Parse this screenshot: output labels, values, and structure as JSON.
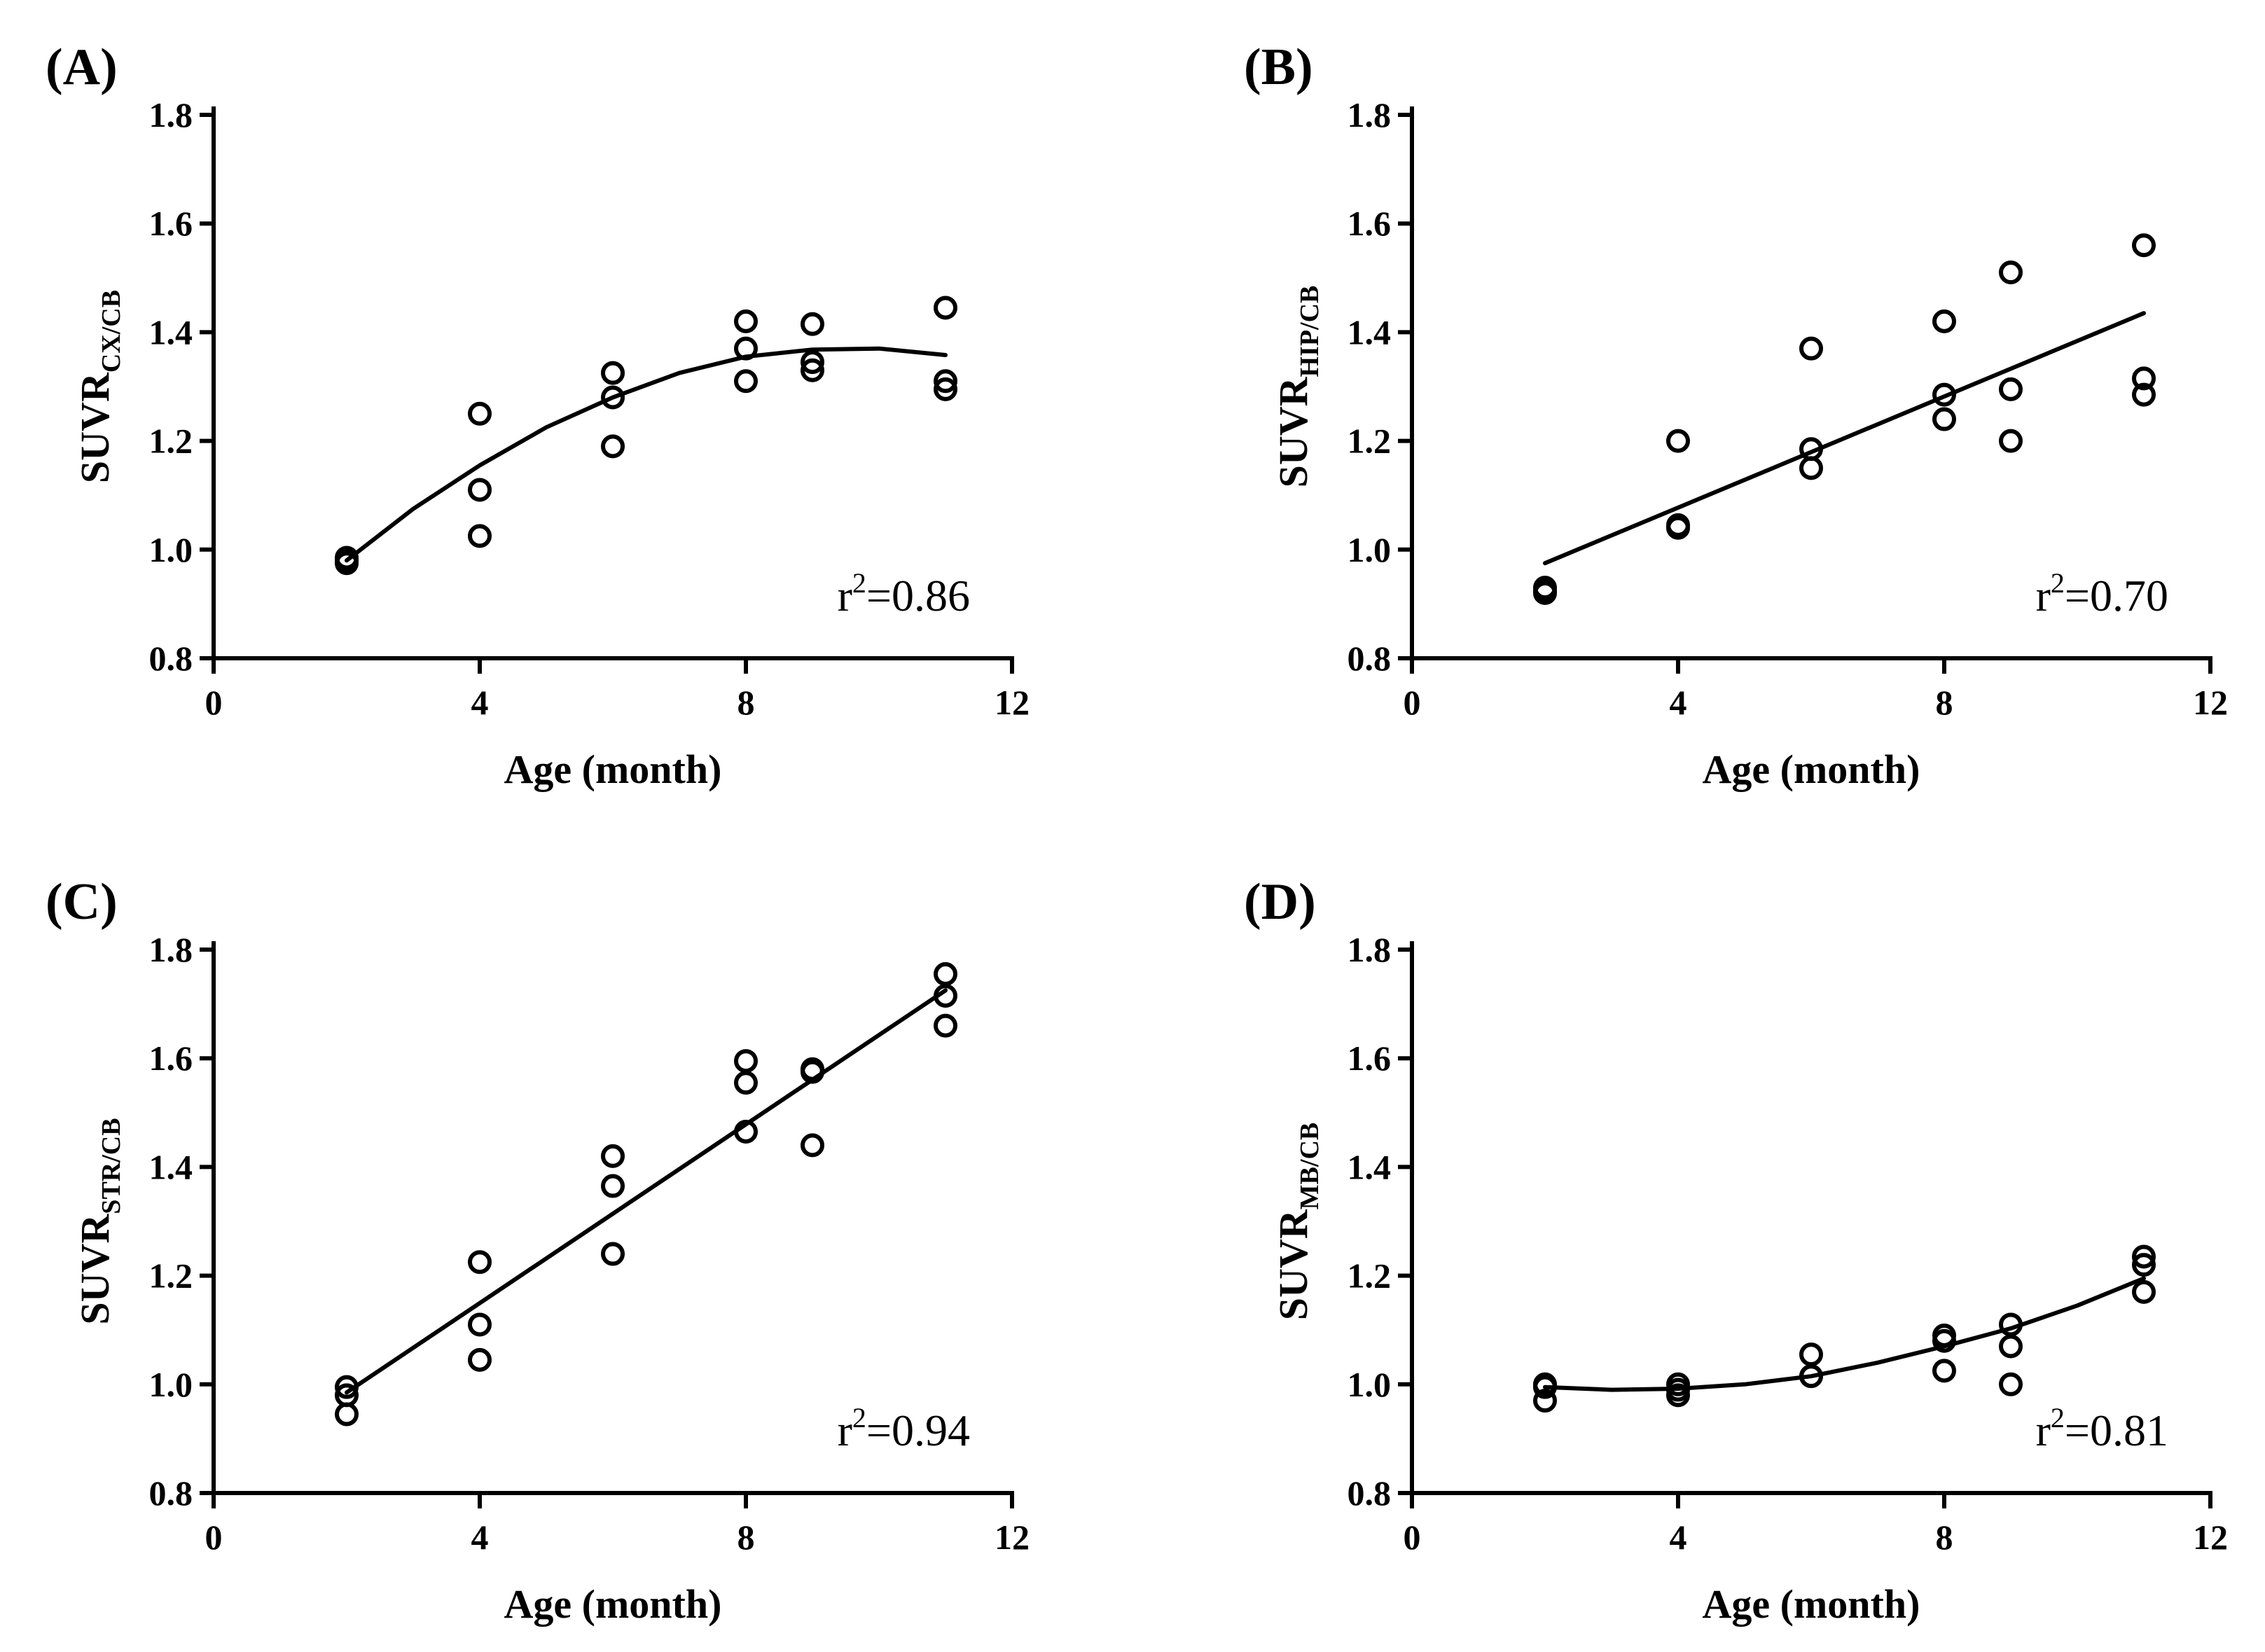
{
  "chart_data": [
    {
      "type": "scatter",
      "panel_label": "(A)",
      "ylabel_main": "SUVR",
      "ylabel_sub": "CX/CB",
      "xlabel": "Age (month)",
      "xlim": [
        0,
        12
      ],
      "ylim": [
        0.8,
        1.8
      ],
      "xticks": [
        0,
        4,
        8,
        12
      ],
      "yticks": [
        0.8,
        1.0,
        1.2,
        1.4,
        1.6,
        1.8
      ],
      "xtick_labels": [
        "0",
        "4",
        "8",
        "12"
      ],
      "ytick_labels": [
        "0.8",
        "1.0",
        "1.2",
        "1.4",
        "1.6",
        "1.8"
      ],
      "r2_base": "r",
      "r2_sup": "2",
      "r2_tail": "=0.86",
      "x": [
        2,
        2,
        2,
        4,
        4,
        4,
        6,
        6,
        6,
        8,
        8,
        8,
        9,
        9,
        9,
        11,
        11,
        11
      ],
      "y": [
        0.985,
        0.975,
        0.98,
        1.25,
        1.11,
        1.025,
        1.325,
        1.28,
        1.19,
        1.42,
        1.37,
        1.31,
        1.415,
        1.345,
        1.33,
        1.445,
        1.31,
        1.295
      ],
      "fit": {
        "type": "polynomial",
        "x": [
          2,
          3,
          4,
          5,
          6,
          7,
          8,
          9,
          10,
          11
        ],
        "y": [
          0.98,
          1.075,
          1.155,
          1.225,
          1.28,
          1.325,
          1.355,
          1.368,
          1.37,
          1.358
        ]
      }
    },
    {
      "type": "scatter",
      "panel_label": "(B)",
      "ylabel_main": "SUVR",
      "ylabel_sub": "HIP/CB",
      "xlabel": "Age (month)",
      "xlim": [
        0,
        12
      ],
      "ylim": [
        0.8,
        1.8
      ],
      "xticks": [
        0,
        4,
        8,
        12
      ],
      "yticks": [
        0.8,
        1.0,
        1.2,
        1.4,
        1.6,
        1.8
      ],
      "xtick_labels": [
        "0",
        "4",
        "8",
        "12"
      ],
      "ytick_labels": [
        "0.8",
        "1.0",
        "1.2",
        "1.4",
        "1.6",
        "1.8"
      ],
      "r2_base": "r",
      "r2_sup": "2",
      "r2_tail": "=0.70",
      "x": [
        2,
        2,
        2,
        4,
        4,
        4,
        6,
        6,
        6,
        8,
        8,
        8,
        9,
        9,
        9,
        11,
        11,
        11
      ],
      "y": [
        0.93,
        0.92,
        0.925,
        1.2,
        1.04,
        1.045,
        1.37,
        1.185,
        1.15,
        1.42,
        1.285,
        1.24,
        1.51,
        1.295,
        1.2,
        1.56,
        1.315,
        1.285
      ],
      "fit": {
        "type": "linear",
        "x": [
          2,
          11
        ],
        "y": [
          0.975,
          1.435
        ]
      }
    },
    {
      "type": "scatter",
      "panel_label": "(C)",
      "ylabel_main": "SUVR",
      "ylabel_sub": "STR/CB",
      "xlabel": "Age (month)",
      "xlim": [
        0,
        12
      ],
      "ylim": [
        0.8,
        1.8
      ],
      "xticks": [
        0,
        4,
        8,
        12
      ],
      "yticks": [
        0.8,
        1.0,
        1.2,
        1.4,
        1.6,
        1.8
      ],
      "xtick_labels": [
        "0",
        "4",
        "8",
        "12"
      ],
      "ytick_labels": [
        "0.8",
        "1.0",
        "1.2",
        "1.4",
        "1.6",
        "1.8"
      ],
      "r2_base": "r",
      "r2_sup": "2",
      "r2_tail": "=0.94",
      "x": [
        2,
        2,
        2,
        4,
        4,
        4,
        6,
        6,
        6,
        8,
        8,
        8,
        9,
        9,
        9,
        11,
        11,
        11
      ],
      "y": [
        0.995,
        0.98,
        0.945,
        1.225,
        1.11,
        1.045,
        1.42,
        1.365,
        1.24,
        1.595,
        1.555,
        1.465,
        1.58,
        1.575,
        1.44,
        1.755,
        1.715,
        1.66
      ],
      "fit": {
        "type": "linear",
        "x": [
          2,
          11
        ],
        "y": [
          0.985,
          1.725
        ]
      }
    },
    {
      "type": "scatter",
      "panel_label": "(D)",
      "ylabel_main": "SUVR",
      "ylabel_sub": "MB/CB",
      "xlabel": "Age (month)",
      "xlim": [
        0,
        12
      ],
      "ylim": [
        0.8,
        1.8
      ],
      "xticks": [
        0,
        4,
        8,
        12
      ],
      "yticks": [
        0.8,
        1.0,
        1.2,
        1.4,
        1.6,
        1.8
      ],
      "xtick_labels": [
        "0",
        "4",
        "8",
        "12"
      ],
      "ytick_labels": [
        "0.8",
        "1.0",
        "1.2",
        "1.4",
        "1.6",
        "1.8"
      ],
      "r2_base": "r",
      "r2_sup": "2",
      "r2_tail": "=0.81",
      "x": [
        2,
        2,
        2,
        4,
        4,
        4,
        6,
        6,
        6,
        8,
        8,
        8,
        9,
        9,
        9,
        11,
        11,
        11
      ],
      "y": [
        1.0,
        0.995,
        0.97,
        1.0,
        0.99,
        0.98,
        1.055,
        1.015,
        1.015,
        1.09,
        1.08,
        1.025,
        1.11,
        1.07,
        1.0,
        1.235,
        1.22,
        1.17
      ],
      "fit": {
        "type": "polynomial",
        "x": [
          2,
          3,
          4,
          5,
          6,
          7,
          8,
          9,
          10,
          11
        ],
        "y": [
          0.995,
          0.99,
          0.992,
          1.0,
          1.015,
          1.04,
          1.07,
          1.103,
          1.145,
          1.195
        ]
      }
    }
  ]
}
